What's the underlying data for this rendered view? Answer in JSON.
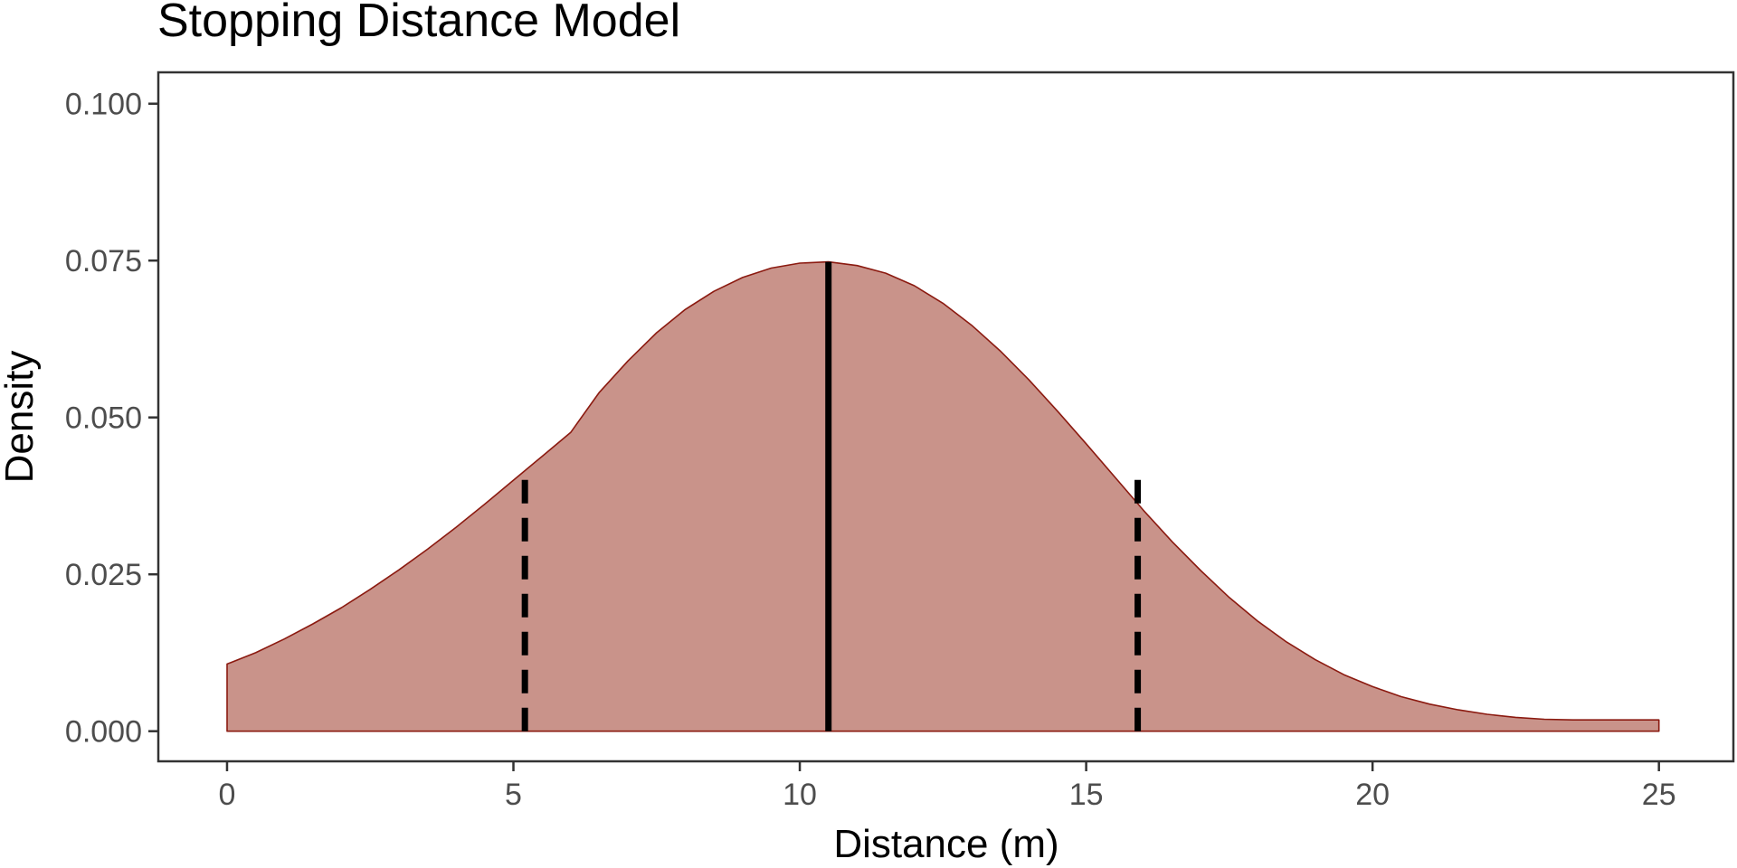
{
  "chart_data": {
    "type": "area",
    "title": "Stopping Distance Model",
    "xlabel": "Distance (m)",
    "ylabel": "Density",
    "xlim": [
      -1.2,
      26.3
    ],
    "ylim": [
      -0.0048,
      0.105
    ],
    "x_ticks": [
      0,
      5,
      10,
      15,
      20,
      25
    ],
    "x_tick_labels": [
      "0",
      "5",
      "10",
      "15",
      "20",
      "25"
    ],
    "y_ticks": [
      0.0,
      0.025,
      0.05,
      0.075,
      0.1
    ],
    "y_tick_labels": [
      "0.000",
      "0.025",
      "0.050",
      "0.075",
      "0.100"
    ],
    "grid": false,
    "density": {
      "x": [
        0,
        0.5,
        1,
        1.5,
        2,
        2.5,
        3,
        3.5,
        4,
        4.5,
        5,
        5.5,
        6,
        6.5,
        7,
        7.5,
        8,
        8.5,
        9,
        9.5,
        10,
        10.5,
        11,
        11.5,
        12,
        12.5,
        13,
        13.5,
        14,
        14.5,
        15,
        15.5,
        16,
        16.5,
        17,
        17.5,
        18,
        18.5,
        19,
        19.5,
        20,
        20.5,
        21,
        21.5,
        22,
        22.5,
        23,
        23.5,
        24,
        24.5,
        25
      ],
      "y": [
        0.0107,
        0.0125,
        0.0147,
        0.0171,
        0.0197,
        0.0226,
        0.0257,
        0.029,
        0.0325,
        0.0362,
        0.04,
        0.0438,
        0.0476,
        0.054,
        0.059,
        0.0635,
        0.0672,
        0.0701,
        0.0723,
        0.0738,
        0.0746,
        0.0748,
        0.0742,
        0.073,
        0.071,
        0.0682,
        0.0647,
        0.0606,
        0.056,
        0.051,
        0.0458,
        0.0405,
        0.0352,
        0.0302,
        0.0256,
        0.0213,
        0.0175,
        0.0142,
        0.0114,
        0.009,
        0.0071,
        0.0055,
        0.0043,
        0.0034,
        0.0027,
        0.0022,
        0.0019,
        0.0018,
        0.0018,
        0.0018,
        0.0018
      ]
    },
    "vlines": [
      {
        "x": 10.5,
        "y_end": 0.0748,
        "style": "solid"
      },
      {
        "x": 5.2,
        "y_end": 0.0415,
        "style": "dashed"
      },
      {
        "x": 15.9,
        "y_end": 0.0415,
        "style": "dashed"
      }
    ],
    "colors": {
      "fill": "#c9938a",
      "outline": "#8b1a10",
      "lines": "#000000"
    }
  }
}
